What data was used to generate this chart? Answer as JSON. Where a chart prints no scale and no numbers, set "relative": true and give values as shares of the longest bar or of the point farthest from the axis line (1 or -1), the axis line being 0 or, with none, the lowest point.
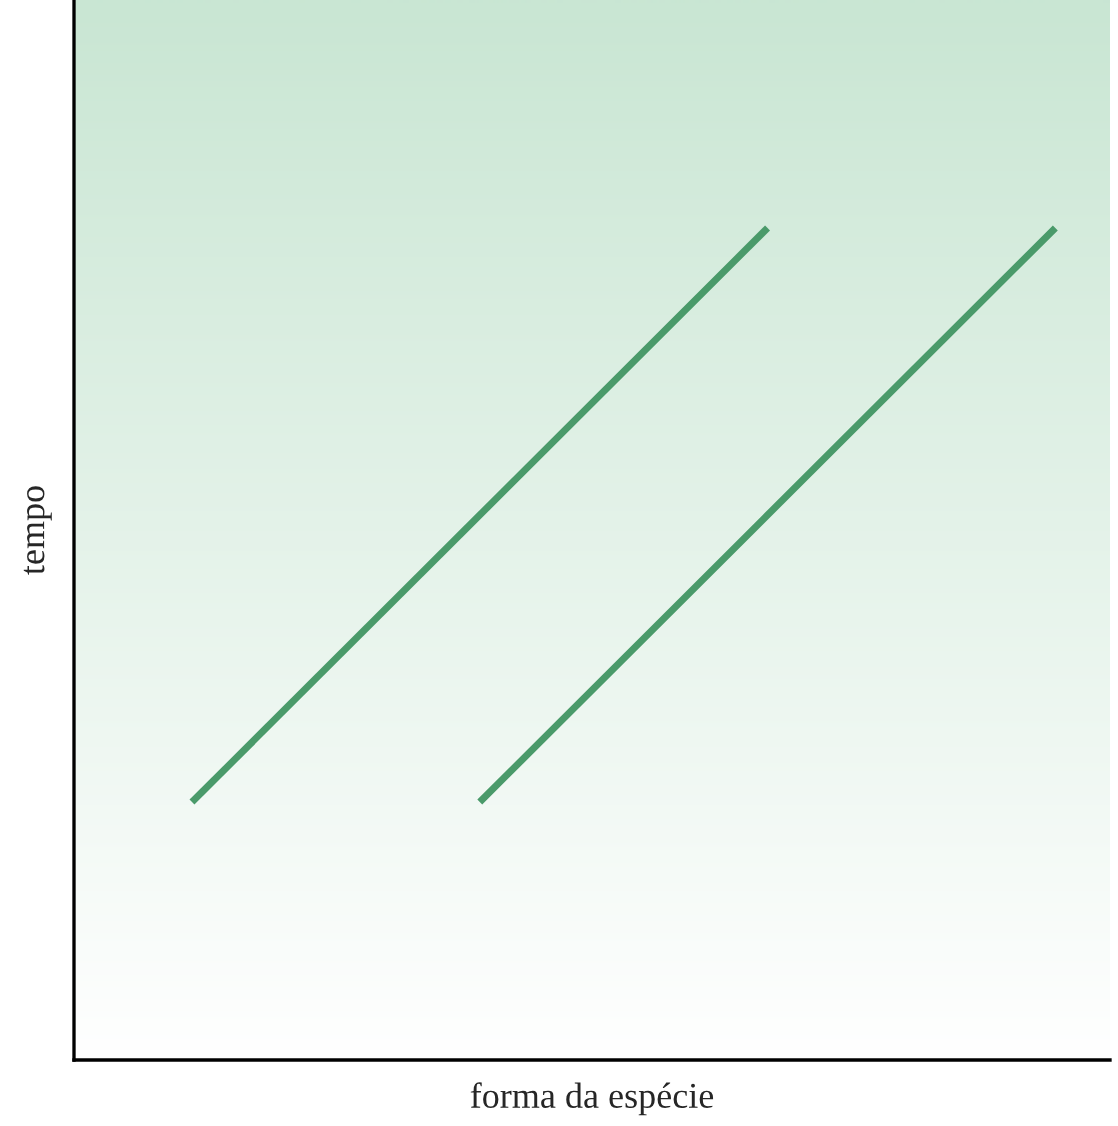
{
  "chart_data": {
    "type": "line",
    "relative": true,
    "xlabel": "forma da espécie",
    "ylabel": "tempo",
    "categories": [
      null,
      null,
      null,
      null
    ],
    "series": [
      {
        "color": "#4a9a6a",
        "values": [
          0.31,
          0.655,
          1,
          null
        ]
      },
      {
        "color": "#4a9a6a",
        "values": [
          null,
          0.31,
          0.655,
          1
        ]
      }
    ],
    "grid": false,
    "marker": "none",
    "line_style": "solid",
    "tick_labels": false
  }
}
